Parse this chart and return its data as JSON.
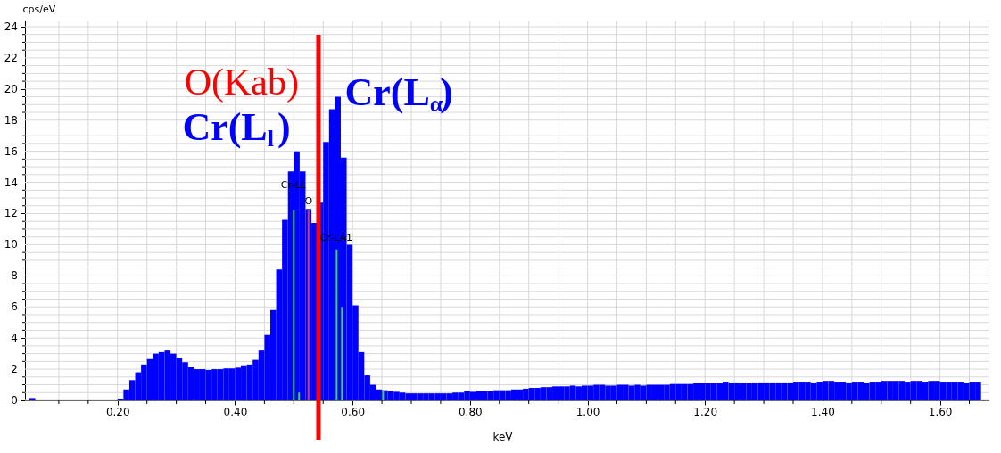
{
  "chart_data": {
    "type": "histogram",
    "xlabel": "keV",
    "ylabel": "cps/eV",
    "color": "#0000ff",
    "bins": [
      0.05,
      0.06,
      0.07,
      0.08,
      0.09,
      0.1,
      0.11,
      0.12,
      0.13,
      0.14,
      0.15,
      0.16,
      0.17,
      0.18,
      0.19,
      0.2,
      0.21,
      0.22,
      0.23,
      0.24,
      0.25,
      0.26,
      0.27,
      0.28,
      0.29,
      0.3,
      0.31,
      0.32,
      0.33,
      0.34,
      0.35,
      0.36,
      0.37,
      0.38,
      0.39,
      0.4,
      0.41,
      0.42,
      0.43,
      0.44,
      0.45,
      0.46,
      0.47,
      0.48,
      0.49,
      0.5,
      0.51,
      0.52,
      0.53,
      0.54,
      0.55,
      0.56,
      0.57,
      0.58,
      0.59,
      0.6,
      0.61,
      0.62,
      0.63,
      0.64,
      0.65,
      0.66,
      0.67,
      0.68,
      0.69,
      0.7,
      0.71,
      0.72,
      0.73,
      0.74,
      0.75,
      0.76,
      0.77,
      0.78,
      0.79,
      0.8,
      0.81,
      0.82,
      0.83,
      0.84,
      0.85,
      0.86,
      0.87,
      0.88,
      0.89,
      0.9,
      0.91,
      0.92,
      0.93,
      0.94,
      0.95,
      0.96,
      0.97,
      0.98,
      0.99,
      1.0,
      1.01,
      1.02,
      1.03,
      1.04,
      1.05,
      1.06,
      1.07,
      1.08,
      1.09,
      1.1,
      1.11,
      1.12,
      1.13,
      1.14,
      1.15,
      1.16,
      1.17,
      1.18,
      1.19,
      1.2,
      1.21,
      1.22,
      1.23,
      1.24,
      1.25,
      1.26,
      1.27,
      1.28,
      1.29,
      1.3,
      1.31,
      1.32,
      1.33,
      1.34,
      1.35,
      1.36,
      1.37,
      1.38,
      1.39,
      1.4,
      1.41,
      1.42,
      1.43,
      1.44,
      1.45,
      1.46,
      1.47,
      1.48,
      1.49,
      1.5,
      1.51,
      1.52,
      1.53,
      1.54,
      1.55,
      1.56,
      1.57,
      1.58,
      1.59,
      1.6,
      1.61,
      1.62,
      1.63,
      1.64,
      1.65,
      1.66,
      1.67
    ],
    "values": [
      0.15,
      0,
      0,
      0,
      0,
      0,
      0,
      0,
      0,
      0,
      0,
      0,
      0,
      0,
      0,
      0.1,
      0.7,
      1.3,
      1.8,
      2.3,
      2.65,
      3.0,
      3.1,
      3.2,
      3.0,
      2.75,
      2.45,
      2.15,
      2.0,
      2.0,
      1.95,
      2.0,
      2.0,
      2.05,
      2.05,
      2.1,
      2.25,
      2.3,
      2.6,
      3.2,
      4.2,
      5.8,
      8.4,
      11.6,
      14.7,
      16.0,
      14.7,
      12.3,
      11.4,
      12.7,
      16.6,
      18.7,
      19.5,
      15.6,
      10.0,
      6.1,
      3.1,
      1.6,
      1.0,
      0.7,
      0.65,
      0.6,
      0.55,
      0.5,
      0.45,
      0.45,
      0.45,
      0.45,
      0.45,
      0.45,
      0.45,
      0.45,
      0.5,
      0.5,
      0.6,
      0.55,
      0.6,
      0.6,
      0.6,
      0.65,
      0.65,
      0.65,
      0.7,
      0.7,
      0.75,
      0.8,
      0.8,
      0.85,
      0.85,
      0.9,
      0.9,
      0.9,
      0.95,
      0.9,
      0.95,
      0.95,
      1.0,
      1.0,
      0.95,
      0.95,
      1.0,
      1.0,
      0.95,
      1.0,
      0.95,
      1.0,
      1.0,
      1.0,
      1.0,
      1.05,
      1.05,
      1.05,
      1.05,
      1.1,
      1.1,
      1.1,
      1.1,
      1.1,
      1.2,
      1.15,
      1.15,
      1.1,
      1.1,
      1.15,
      1.15,
      1.15,
      1.15,
      1.15,
      1.15,
      1.15,
      1.2,
      1.2,
      1.2,
      1.15,
      1.2,
      1.25,
      1.25,
      1.2,
      1.2,
      1.15,
      1.2,
      1.2,
      1.15,
      1.2,
      1.2,
      1.25,
      1.25,
      1.25,
      1.25,
      1.2,
      1.25,
      1.25,
      1.2,
      1.25,
      1.25,
      1.2,
      1.2,
      1.2,
      1.2,
      1.15,
      1.2,
      1.2
    ],
    "series": [
      {
        "type": "bar",
        "color": "#33e033",
        "x": [
          0.5,
          0.509,
          0.573,
          0.582,
          0.652
        ],
        "values": [
          12.2,
          0.5,
          9.7,
          6.0,
          0.6
        ]
      },
      {
        "type": "bar",
        "color": "#ff3030",
        "x": [
          0.525
        ],
        "values": [
          12.2
        ]
      }
    ],
    "ref_lines": [
      {
        "axis": "x",
        "value": 0.542,
        "label": "O(Kab)",
        "color": "#ff0000"
      }
    ],
    "annotations": [
      {
        "text": "Cr-LL",
        "x": 0.499,
        "y": 13.8
      },
      {
        "text": "O",
        "x": 0.525,
        "y": 12.8
      },
      {
        "text": "Cr-LA1",
        "x": 0.572,
        "y": 10.4
      },
      {
        "text": "Cr(L$_{l}$)",
        "x": 0.505,
        "y": 16.0
      },
      {
        "text": "Cr(L$_{α}$)",
        "x": 0.575,
        "y": 19.5
      }
    ],
    "xlim": [
      0.05,
      1.675
    ],
    "ylim": [
      0,
      24.4
    ],
    "xticks": [
      {
        "value": 0.1,
        "label": null
      },
      {
        "value": 0.15,
        "label": null
      },
      {
        "value": 0.2,
        "label": "0.20"
      },
      {
        "value": 0.25,
        "label": null
      },
      {
        "value": 0.3,
        "label": null
      },
      {
        "value": 0.35,
        "label": null
      },
      {
        "value": 0.4,
        "label": "0.40"
      },
      {
        "value": 0.45,
        "label": null
      },
      {
        "value": 0.5,
        "label": null
      },
      {
        "value": 0.55,
        "label": null
      },
      {
        "value": 0.6,
        "label": "0.60"
      },
      {
        "value": 0.65,
        "label": null
      },
      {
        "value": 0.7,
        "label": null
      },
      {
        "value": 0.75,
        "label": null
      },
      {
        "value": 0.8,
        "label": "0.80"
      },
      {
        "value": 0.85,
        "label": null
      },
      {
        "value": 0.9,
        "label": null
      },
      {
        "value": 0.95,
        "label": null
      },
      {
        "value": 1.0,
        "label": "1.00"
      },
      {
        "value": 1.05,
        "label": null
      },
      {
        "value": 1.1,
        "label": null
      },
      {
        "value": 1.15,
        "label": null
      },
      {
        "value": 1.2,
        "label": "1.20"
      },
      {
        "value": 1.25,
        "label": null
      },
      {
        "value": 1.3,
        "label": null
      },
      {
        "value": 1.35,
        "label": null
      },
      {
        "value": 1.4,
        "label": "1.40"
      },
      {
        "value": 1.45,
        "label": null
      },
      {
        "value": 1.5,
        "label": null
      },
      {
        "value": 1.55,
        "label": null
      },
      {
        "value": 1.6,
        "label": "1.60"
      },
      {
        "value": 1.65,
        "label": null
      }
    ],
    "yticks": [
      0,
      {
        "value": 0.5,
        "label": null
      },
      {
        "value": 1,
        "label": null
      },
      {
        "value": 1.5,
        "label": null
      },
      2,
      {
        "value": 2.5,
        "label": null
      },
      {
        "value": 3,
        "label": null
      },
      {
        "value": 3.5,
        "label": null
      },
      4,
      {
        "value": 4.5,
        "label": null
      },
      {
        "value": 5,
        "label": null
      },
      {
        "value": 5.5,
        "label": null
      },
      6,
      {
        "value": 6.5,
        "label": null
      },
      {
        "value": 7,
        "label": null
      },
      {
        "value": 7.5,
        "label": null
      },
      8,
      {
        "value": 8.5,
        "label": null
      },
      {
        "value": 9,
        "label": null
      },
      {
        "value": 9.5,
        "label": null
      },
      10,
      {
        "value": 10.5,
        "label": null
      },
      {
        "value": 11,
        "label": null
      },
      {
        "value": 11.5,
        "label": null
      },
      12,
      {
        "value": 12.5,
        "label": null
      },
      {
        "value": 13,
        "label": null
      },
      {
        "value": 13.5,
        "label": null
      },
      14,
      {
        "value": 14.5,
        "label": null
      },
      {
        "value": 15,
        "label": null
      },
      {
        "value": 15.5,
        "label": null
      },
      16,
      {
        "value": 16.5,
        "label": null
      },
      {
        "value": 17,
        "label": null
      },
      {
        "value": 17.5,
        "label": null
      },
      18,
      {
        "value": 18.5,
        "label": null
      },
      {
        "value": 19,
        "label": null
      },
      {
        "value": 19.5,
        "label": null
      },
      20,
      {
        "value": 20.5,
        "label": null
      },
      {
        "value": 21,
        "label": null
      },
      {
        "value": 21.5,
        "label": null
      },
      22,
      {
        "value": 22.5,
        "label": null
      },
      {
        "value": 23,
        "label": null
      },
      {
        "value": 23.5,
        "label": null
      },
      24
    ],
    "grid": true
  }
}
